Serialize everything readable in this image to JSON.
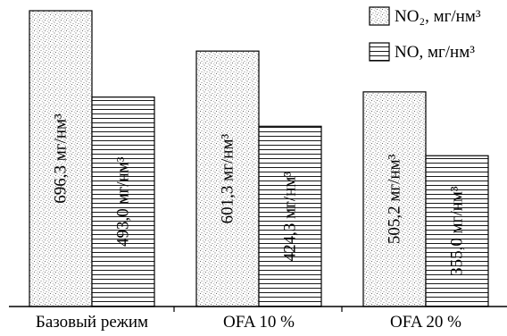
{
  "chart_data": {
    "type": "bar",
    "title": "",
    "xlabel": "",
    "ylabel": "",
    "categories": [
      "Базовый режим",
      "OFA 10 %",
      "OFA 20 %"
    ],
    "ylim": [
      0,
      700
    ],
    "grid": false,
    "legend_position": "top-right",
    "series": [
      {
        "name": "NO₂, мг/нм³",
        "pattern": "stipple",
        "values": [
          696.3,
          601.3,
          505.2
        ],
        "labels": [
          "696,3 мг/нм³",
          "601,3 мг/нм³",
          "505,2 мг/нм³"
        ]
      },
      {
        "name": "NO, мг/нм³",
        "pattern": "horizontal-lines",
        "values": [
          493.0,
          424.3,
          355.0
        ],
        "labels": [
          "493,0 мг/нм³",
          "424,3 мг/нм³",
          "355,0 мг/нм³"
        ]
      }
    ]
  }
}
